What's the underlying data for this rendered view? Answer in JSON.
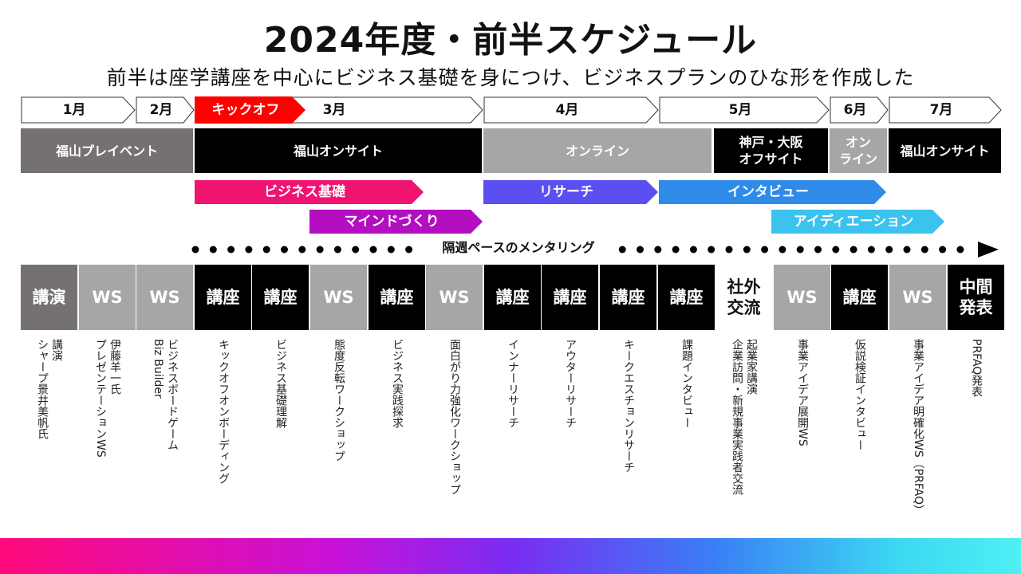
{
  "title": "2024年度・前半スケジュール",
  "subtitle": "前半は座学講座を中心にビジネス基礎を身につけ、ビジネスプランのひな形を作成した",
  "months": [
    {
      "id": "jan",
      "label": "1月"
    },
    {
      "id": "feb",
      "label": "2月"
    },
    {
      "id": "kickoff",
      "label": "キックオフ"
    },
    {
      "id": "mar",
      "label": "3月"
    },
    {
      "id": "apr",
      "label": "4月"
    },
    {
      "id": "may",
      "label": "5月"
    },
    {
      "id": "jun",
      "label": "6月"
    },
    {
      "id": "jul",
      "label": "7月"
    }
  ],
  "venues": [
    {
      "label": "福山プレイベント",
      "color": "#767171"
    },
    {
      "label": "福山オンサイト",
      "color": "#000000"
    },
    {
      "label": "オンライン",
      "color": "#a6a6a6"
    },
    {
      "label": "神戸・大阪\nオフサイト",
      "color": "#000000"
    },
    {
      "label": "オン\nライン",
      "color": "#a6a6a6"
    },
    {
      "label": "福山オンサイト",
      "color": "#000000"
    }
  ],
  "programs": [
    {
      "label": "ビジネス基礎",
      "color": "#f0136f"
    },
    {
      "label": "マインドづくり",
      "color": "#b30fc0"
    },
    {
      "label": "リサーチ",
      "color": "#5b4ff2"
    },
    {
      "label": "インタビュー",
      "color": "#2e8be8"
    },
    {
      "label": "アイディエーション",
      "color": "#3bc3ee"
    }
  ],
  "mentoring": "隔週ペースのメンタリング",
  "colors": {
    "kickoff": "#ff0000",
    "dark": "#000000",
    "gray": "#a6a6a6",
    "darkgray": "#767171"
  },
  "sessions": [
    {
      "type": "講演",
      "desc": "講演\nシャープ景井美帆氏",
      "color": "#767171"
    },
    {
      "type": "WS",
      "desc": "伊藤羊一氏\nプレゼンテーションWS",
      "color": "#a6a6a6"
    },
    {
      "type": "WS",
      "desc": "ビジネスボードゲーム\nBiz Builder",
      "color": "#a6a6a6"
    },
    {
      "type": "講座",
      "desc": "キックオフオンボーディング",
      "color": "#000000"
    },
    {
      "type": "講座",
      "desc": "ビジネス基礎理解",
      "color": "#000000"
    },
    {
      "type": "WS",
      "desc": "態度反転ワークショップ",
      "color": "#a6a6a6"
    },
    {
      "type": "講座",
      "desc": "ビジネス実践探求",
      "color": "#000000"
    },
    {
      "type": "WS",
      "desc": "面白がり力強化ワークショップ",
      "color": "#a6a6a6"
    },
    {
      "type": "講座",
      "desc": "インナーリサーチ",
      "color": "#000000"
    },
    {
      "type": "講座",
      "desc": "アウターリサーチ",
      "color": "#000000"
    },
    {
      "type": "講座",
      "desc": "キークエスチョンリサーチ",
      "color": "#000000"
    },
    {
      "type": "講座",
      "desc": "課題インタビュー",
      "color": "#000000"
    },
    {
      "type": "社外\n交流",
      "desc": "起業家講演\n企業訪問・新規事業実践者交流",
      "color": "#ffffff"
    },
    {
      "type": "WS",
      "desc": "事業アイデア展開WS",
      "color": "#a6a6a6"
    },
    {
      "type": "講座",
      "desc": "仮説検証インタビュー",
      "color": "#000000"
    },
    {
      "type": "WS",
      "desc": "事業アイデア明確化WS（PRFAQ）",
      "color": "#a6a6a6"
    },
    {
      "type": "中間\n発表",
      "desc": "PRFAQ発表",
      "color": "#000000"
    }
  ]
}
